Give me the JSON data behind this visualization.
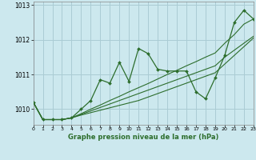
{
  "xlabel": "Graphe pression niveau de la mer (hPa)",
  "xlim": [
    0,
    23
  ],
  "ylim": [
    1009.55,
    1013.1
  ],
  "yticks": [
    1010,
    1011,
    1012,
    1013
  ],
  "xticks": [
    0,
    1,
    2,
    3,
    4,
    5,
    6,
    7,
    8,
    9,
    10,
    11,
    12,
    13,
    14,
    15,
    16,
    17,
    18,
    19,
    20,
    21,
    22,
    23
  ],
  "background_color": "#cce8ee",
  "grid_color": "#aaccd4",
  "line_color": "#2d6e2d",
  "series_main": [
    1010.2,
    1009.7,
    1009.7,
    1009.7,
    1009.75,
    1010.0,
    1010.25,
    1010.85,
    1010.75,
    1011.35,
    1010.8,
    1011.75,
    1011.6,
    1011.15,
    1011.1,
    1011.1,
    1011.1,
    1010.5,
    1010.3,
    1010.9,
    1011.55,
    1012.5,
    1012.85,
    1012.6
  ],
  "series_line2": [
    1010.2,
    1009.7,
    1009.7,
    1009.7,
    1009.75,
    1009.87,
    1010.0,
    1010.12,
    1010.25,
    1010.37,
    1010.5,
    1010.62,
    1010.74,
    1010.87,
    1011.0,
    1011.12,
    1011.25,
    1011.37,
    1011.5,
    1011.62,
    1011.9,
    1012.15,
    1012.45,
    1012.6
  ],
  "series_line3": [
    1010.2,
    1009.7,
    1009.7,
    1009.7,
    1009.75,
    1009.85,
    1009.95,
    1010.05,
    1010.15,
    1010.25,
    1010.35,
    1010.45,
    1010.55,
    1010.65,
    1010.75,
    1010.85,
    1010.95,
    1011.05,
    1011.15,
    1011.25,
    1011.5,
    1011.7,
    1011.9,
    1012.1
  ],
  "series_line4": [
    1010.2,
    1009.7,
    1009.7,
    1009.7,
    1009.75,
    1009.83,
    1009.9,
    1009.97,
    1010.04,
    1010.11,
    1010.18,
    1010.25,
    1010.35,
    1010.45,
    1010.55,
    1010.65,
    1010.75,
    1010.85,
    1010.95,
    1011.05,
    1011.3,
    1011.55,
    1011.8,
    1012.05
  ]
}
